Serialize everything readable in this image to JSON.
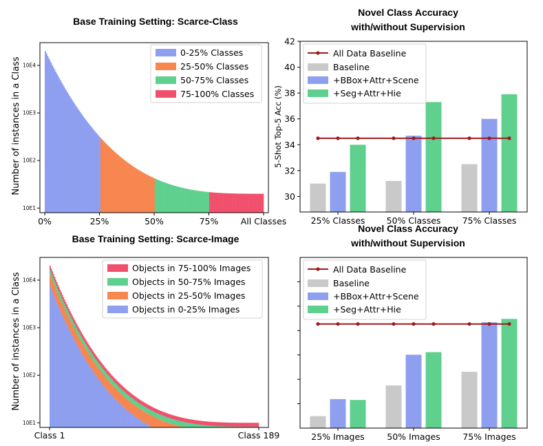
{
  "chart_data": [
    {
      "id": "tl",
      "type": "bar",
      "title": "Base Training Setting: Scarce-Class",
      "ylabel": "Number of instances in a Class",
      "yscale": "log",
      "ylim": [
        8,
        30000
      ],
      "yticks": [
        "10E1",
        "10E2",
        "10E3",
        "10E4"
      ],
      "xticks": [
        "0%",
        "25%",
        "50%",
        "75%",
        "All Classes"
      ],
      "num_classes": 189,
      "legend": {
        "placement": "top-right",
        "entries": [
          {
            "label": "0-25% Classes",
            "color": "#8f9ff0"
          },
          {
            "label": "25-50% Classes",
            "color": "#f78650"
          },
          {
            "label": "50-75% Classes",
            "color": "#5fd08e"
          },
          {
            "label": "75-100% Classes",
            "color": "#f1506d"
          }
        ]
      },
      "grid": false
    },
    {
      "id": "tr",
      "type": "bar",
      "title": "Novel Class Accuracy",
      "subtitle": "with/without Supervision",
      "ylabel": "5-Shot Top-5 Acc (%)",
      "ylim": [
        28.8,
        42
      ],
      "yticks": [
        30,
        32,
        34,
        36,
        38,
        40,
        42
      ],
      "categories": [
        "25% Classes",
        "50% Classes",
        "75% Classes"
      ],
      "baseline": {
        "name": "All Data Baseline",
        "value": 34.5,
        "color": "#a01818"
      },
      "series": [
        {
          "name": "Baseline",
          "values": [
            31.0,
            31.2,
            32.5
          ],
          "color": "#c9c9c9"
        },
        {
          "name": "+BBox+Attr+Scene",
          "values": [
            31.9,
            34.7,
            36.0
          ],
          "color": "#8f9ff0"
        },
        {
          "name": "+Seg+Attr+Hie",
          "values": [
            34.0,
            37.3,
            37.9
          ],
          "color": "#5fd08e"
        }
      ],
      "legend": "top-left",
      "grid": false
    },
    {
      "id": "bl",
      "type": "bar",
      "title": "Base Training Setting: Scarce-Image",
      "ylabel": "Number of instances in a Class",
      "yscale": "log",
      "ylim": [
        8,
        30000
      ],
      "yticks": [
        "10E1",
        "10E2",
        "10E3",
        "10E4"
      ],
      "xticks": [
        "Class 1",
        "Class 189"
      ],
      "num_classes": 189,
      "legend": {
        "placement": "top-right",
        "entries": [
          {
            "label": "Objects in 75-100% Images",
            "color": "#f1506d"
          },
          {
            "label": "Objects in 50-75% Images",
            "color": "#5fd08e"
          },
          {
            "label": "Objects in 25-50% Images",
            "color": "#f78650"
          },
          {
            "label": "Objects in 0-25% Images",
            "color": "#8f9ff0"
          }
        ]
      },
      "grid": false
    },
    {
      "id": "br",
      "type": "bar",
      "title": "Novel Class Accuracy",
      "subtitle": "with/without Supervision",
      "ylim": [
        0,
        100
      ],
      "yticks": [],
      "categories": [
        "25% Images",
        "50% Images",
        "75% Images"
      ],
      "baseline": {
        "name": "All Data Baseline",
        "value": 61,
        "color": "#a01818"
      },
      "series": [
        {
          "name": "Baseline",
          "values": [
            7,
            25,
            33
          ],
          "color": "#c9c9c9"
        },
        {
          "name": "+BBox+Attr+Scene",
          "values": [
            17,
            43,
            62
          ],
          "color": "#8f9ff0"
        },
        {
          "name": "+Seg+Attr+Hie",
          "values": [
            16.5,
            44.5,
            64
          ],
          "color": "#5fd08e"
        }
      ],
      "legend": "top-left",
      "grid": false
    }
  ]
}
